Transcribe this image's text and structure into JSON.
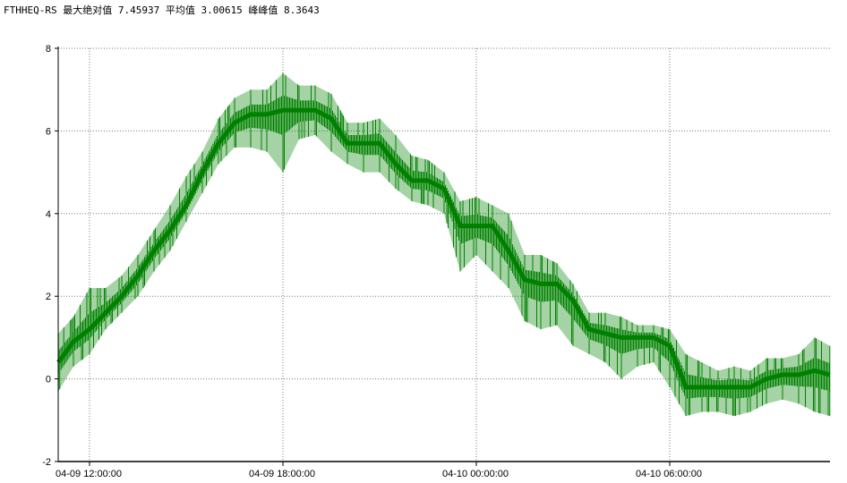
{
  "chart_data": {
    "type": "line",
    "title": "FTHHEQ-RS 最大绝对值 7.45937 平均值 3.00615 峰峰值 8.3643",
    "xlabel": "",
    "ylabel": "",
    "ylim": [
      -2,
      8
    ],
    "yticks": [
      -2,
      0,
      2,
      4,
      6,
      8
    ],
    "xlim": [
      "04-09 11:02",
      "04-10 10:58"
    ],
    "xticks": [
      {
        "t": "04-09 12:00",
        "label": "04-09 12:00:00"
      },
      {
        "t": "04-09 18:00",
        "label": "04-09 18:00:00"
      },
      {
        "t": "04-10 00:00",
        "label": "04-10 00:00:00"
      },
      {
        "t": "04-10 06:00",
        "label": "04-10 06:00:00"
      }
    ],
    "grid": true,
    "color": "#008000",
    "series_format": "[time, value, min, max]",
    "series": [
      [
        "04-09 11:02",
        0.4,
        -0.3,
        1.1
      ],
      [
        "04-09 11:30",
        0.9,
        0.3,
        1.5
      ],
      [
        "04-09 12:00",
        1.2,
        0.6,
        2.2
      ],
      [
        "04-09 12:30",
        1.6,
        1.2,
        2.2
      ],
      [
        "04-09 13:00",
        2.0,
        1.6,
        2.5
      ],
      [
        "04-09 13:30",
        2.5,
        2.0,
        3.0
      ],
      [
        "04-09 14:00",
        3.1,
        2.6,
        3.6
      ],
      [
        "04-09 14:30",
        3.6,
        3.1,
        4.2
      ],
      [
        "04-09 15:00",
        4.2,
        3.8,
        4.9
      ],
      [
        "04-09 15:30",
        5.0,
        4.5,
        5.5
      ],
      [
        "04-09 16:00",
        5.7,
        5.2,
        6.3
      ],
      [
        "04-09 16:30",
        6.2,
        5.6,
        6.8
      ],
      [
        "04-09 17:00",
        6.4,
        5.6,
        7.0
      ],
      [
        "04-09 17:30",
        6.4,
        5.5,
        7.0
      ],
      [
        "04-09 18:00",
        6.5,
        5.0,
        7.4
      ],
      [
        "04-09 18:30",
        6.5,
        5.8,
        7.1
      ],
      [
        "04-09 19:00",
        6.5,
        5.9,
        7.1
      ],
      [
        "04-09 19:30",
        6.3,
        5.5,
        6.9
      ],
      [
        "04-09 20:00",
        5.7,
        5.2,
        6.2
      ],
      [
        "04-09 20:30",
        5.7,
        5.0,
        6.2
      ],
      [
        "04-09 21:00",
        5.7,
        5.0,
        6.3
      ],
      [
        "04-09 21:30",
        5.2,
        4.6,
        5.9
      ],
      [
        "04-09 22:00",
        4.8,
        4.3,
        5.4
      ],
      [
        "04-09 22:30",
        4.8,
        4.2,
        5.3
      ],
      [
        "04-09 23:00",
        4.6,
        4.0,
        5.0
      ],
      [
        "04-09 23:30",
        3.7,
        2.6,
        4.3
      ],
      [
        "04-10 00:00",
        3.7,
        3.0,
        4.4
      ],
      [
        "04-10 00:30",
        3.7,
        2.6,
        4.2
      ],
      [
        "04-10 01:00",
        3.1,
        2.2,
        4.0
      ],
      [
        "04-10 01:30",
        2.4,
        1.4,
        3.0
      ],
      [
        "04-10 02:00",
        2.3,
        1.2,
        3.0
      ],
      [
        "04-10 02:30",
        2.3,
        1.3,
        2.8
      ],
      [
        "04-10 03:00",
        1.9,
        0.8,
        2.3
      ],
      [
        "04-10 03:30",
        1.2,
        0.6,
        1.6
      ],
      [
        "04-10 04:00",
        1.1,
        0.4,
        1.6
      ],
      [
        "04-10 04:30",
        1.0,
        0.0,
        1.5
      ],
      [
        "04-10 05:00",
        1.0,
        0.3,
        1.3
      ],
      [
        "04-10 05:30",
        1.0,
        0.4,
        1.3
      ],
      [
        "04-10 06:00",
        0.8,
        -0.2,
        1.2
      ],
      [
        "04-10 06:30",
        -0.2,
        -0.9,
        0.6
      ],
      [
        "04-10 07:00",
        -0.2,
        -0.8,
        0.4
      ],
      [
        "04-10 07:30",
        -0.2,
        -0.8,
        0.2
      ],
      [
        "04-10 08:00",
        -0.2,
        -0.9,
        0.3
      ],
      [
        "04-10 08:30",
        -0.2,
        -0.8,
        0.2
      ],
      [
        "04-10 09:00",
        0.0,
        -0.6,
        0.5
      ],
      [
        "04-10 09:30",
        0.1,
        -0.5,
        0.5
      ],
      [
        "04-10 10:00",
        0.1,
        -0.6,
        0.6
      ],
      [
        "04-10 10:30",
        0.2,
        -0.8,
        1.0
      ],
      [
        "04-10 10:58",
        0.1,
        -0.9,
        0.8
      ]
    ]
  }
}
